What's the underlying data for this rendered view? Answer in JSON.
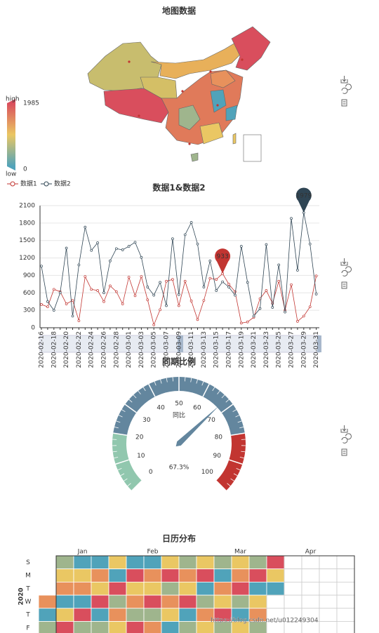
{
  "chart_data": [
    {
      "type": "map",
      "title": "地图数据",
      "visual_map": {
        "max_label": "high",
        "min_label": "low",
        "max": 1985,
        "min": 0,
        "colors": [
          "#50a3ba",
          "#eac763",
          "#d94e5d"
        ]
      }
    },
    {
      "type": "line",
      "title": "数据1&数据2",
      "categories": [
        "2020-02-16",
        null,
        "2020-02-18",
        null,
        "2020-02-20",
        null,
        "2020-02-22",
        null,
        "2020-02-24",
        null,
        "2020-02-26",
        null,
        "2020-02-28",
        null,
        "2020-03-01",
        null,
        "2020-03-03",
        null,
        "2020-03-05",
        null,
        "2020-03-07",
        null,
        "2020-03-09",
        null,
        "2020-03-11",
        null,
        "2020-03-13",
        null,
        "2020-03-15",
        null,
        "2020-03-17",
        null,
        "2020-03-19",
        null,
        "2020-03-21",
        null,
        "2020-03-23",
        null,
        "2020-03-25",
        null,
        "2020-03-27",
        null,
        "2020-03-29",
        null,
        "2020-03-31"
      ],
      "series": [
        {
          "name": "数据1",
          "color": "#c23531",
          "values": [
            400,
            360,
            660,
            620,
            410,
            470,
            120,
            880,
            660,
            640,
            450,
            720,
            620,
            410,
            870,
            550,
            880,
            480,
            50,
            310,
            800,
            830,
            380,
            800,
            460,
            140,
            470,
            850,
            830,
            933,
            750,
            620,
            80,
            100,
            180,
            500,
            640,
            420,
            800,
            300,
            740,
            110,
            200,
            360,
            890
          ]
        },
        {
          "name": "数据2",
          "color": "#2f4554",
          "values": [
            1060,
            450,
            300,
            600,
            1370,
            200,
            1080,
            1730,
            1330,
            1460,
            600,
            1150,
            1360,
            1340,
            1400,
            1470,
            1210,
            700,
            560,
            780,
            380,
            1530,
            570,
            1600,
            1810,
            1440,
            700,
            1150,
            640,
            790,
            700,
            560,
            1400,
            780,
            200,
            330,
            1430,
            350,
            1080,
            270,
            1880,
            990,
            1979,
            1440,
            580
          ]
        }
      ],
      "mark_point": "max",
      "ylim": [
        0,
        2100
      ],
      "yticks": [
        0,
        300,
        600,
        900,
        1200,
        1500,
        1800,
        2100
      ],
      "grid": true
    },
    {
      "type": "gauge",
      "title": "同期比例",
      "name": "同比",
      "value": 67.3,
      "value_label": "67.3%",
      "min": 0,
      "max": 100,
      "ticks": [
        0,
        10,
        20,
        30,
        40,
        50,
        60,
        70,
        80,
        90,
        100
      ],
      "bands": [
        {
          "to": 20,
          "color": "#91c7ae"
        },
        {
          "to": 80,
          "color": "#63869e"
        },
        {
          "to": 100,
          "color": "#c23531"
        }
      ]
    },
    {
      "type": "calendar",
      "title": "日历分布",
      "year_label": "2020",
      "months": [
        "Jan",
        "Feb",
        "Mar",
        "Apr"
      ],
      "weekdays": [
        "S",
        "M",
        "T",
        "W",
        "T",
        "F"
      ],
      "colors": [
        "#50a3ba",
        "#9fb58d",
        "#eac763",
        "#e8915c",
        "#d94e5d"
      ],
      "values": [
        3,
        0,
        1,
        0,
        1,
        2,
        3,
        0,
        2,
        4,
        1,
        0,
        2,
        3,
        0,
        4,
        1,
        2,
        0,
        3,
        2,
        4,
        0,
        1,
        3,
        2,
        0,
        4,
        1,
        3,
        2,
        1,
        0,
        4,
        2,
        3,
        1,
        4,
        2,
        0,
        3,
        2,
        4,
        1,
        3,
        0,
        2,
        4,
        1,
        3,
        2,
        0,
        4,
        1,
        3,
        2,
        4,
        0,
        1,
        3,
        2,
        4,
        0,
        1,
        3,
        2,
        4,
        1,
        0,
        3,
        2,
        4,
        1,
        0,
        2,
        3,
        4,
        1,
        0,
        2,
        3,
        1,
        4,
        0,
        2,
        3,
        1,
        0,
        4,
        2,
        0
      ]
    }
  ],
  "watermark": "https://blog.csdn.net/u012249304"
}
